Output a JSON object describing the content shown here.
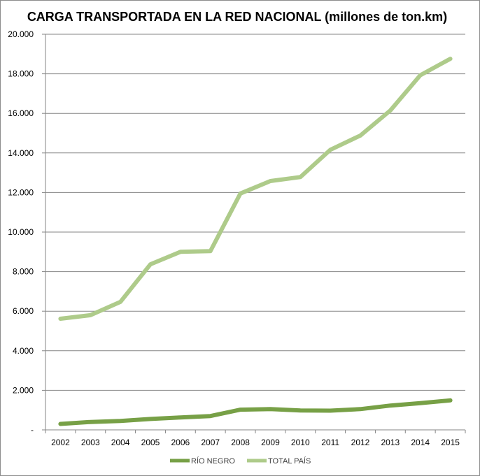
{
  "chart_data": {
    "type": "line",
    "title": "CARGA TRANSPORTADA EN LA RED NACIONAL (millones de ton.km)",
    "xlabel": "",
    "ylabel": "",
    "categories": [
      "2002",
      "2003",
      "2004",
      "2005",
      "2006",
      "2007",
      "2008",
      "2009",
      "2010",
      "2011",
      "2012",
      "2013",
      "2014",
      "2015"
    ],
    "ylim": [
      0,
      20000
    ],
    "y_ticks": [
      {
        "value": 0,
        "label": "-"
      },
      {
        "value": 2000,
        "label": "2.000"
      },
      {
        "value": 4000,
        "label": "4.000"
      },
      {
        "value": 6000,
        "label": "6.000"
      },
      {
        "value": 8000,
        "label": "8.000"
      },
      {
        "value": 10000,
        "label": "10.000"
      },
      {
        "value": 12000,
        "label": "12.000"
      },
      {
        "value": 14000,
        "label": "14.000"
      },
      {
        "value": 16000,
        "label": "16.000"
      },
      {
        "value": 18000,
        "label": "18.000"
      },
      {
        "value": 20000,
        "label": "20.000"
      }
    ],
    "grid": true,
    "legend_position": "bottom",
    "series": [
      {
        "name": "RÍO NEGRO",
        "color": "#77a046",
        "values": [
          300,
          400,
          450,
          550,
          630,
          700,
          1020,
          1050,
          980,
          970,
          1050,
          1230,
          1350,
          1490
        ]
      },
      {
        "name": "TOTAL PAÍS",
        "color": "#aecb8a",
        "values": [
          5620,
          5800,
          6470,
          8370,
          9000,
          9040,
          11950,
          12580,
          12780,
          14160,
          14880,
          16150,
          17930,
          18760
        ]
      }
    ]
  }
}
